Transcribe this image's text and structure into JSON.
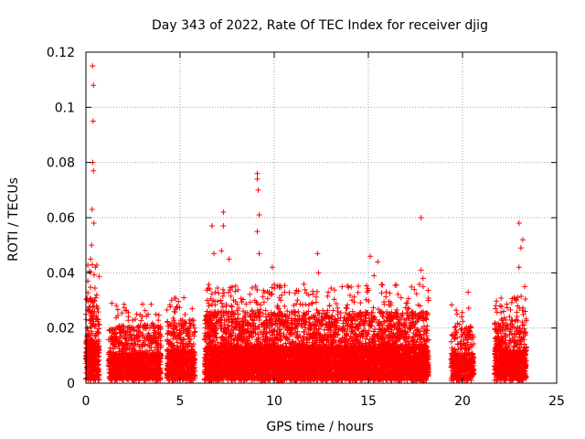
{
  "chart_data": {
    "type": "scatter",
    "title": "Day 343 of 2022, Rate Of TEC Index for receiver djig",
    "xlabel": "GPS time / hours",
    "ylabel": "ROTI / TECUs",
    "xlim": [
      0,
      25
    ],
    "ylim": [
      0,
      0.12
    ],
    "x_ticks": [
      0,
      5,
      10,
      15,
      20,
      25
    ],
    "x_tick_labels": [
      "0",
      "5",
      "10",
      "15",
      "20",
      "25"
    ],
    "y_ticks": [
      0,
      0.02,
      0.04,
      0.06,
      0.08,
      0.1,
      0.12
    ],
    "y_tick_labels": [
      "0",
      "0.02",
      "0.04",
      "0.06",
      "0.08",
      "0.1",
      "0.12"
    ],
    "grid": true,
    "marker": "+",
    "color": "#ff0000",
    "data_segments": [
      {
        "start": 0.0,
        "end": 0.7,
        "density": 55,
        "base_max": 0.03
      },
      {
        "start": 1.2,
        "end": 4.0,
        "density": 40,
        "base_max": 0.02
      },
      {
        "start": 4.3,
        "end": 5.8,
        "density": 40,
        "base_max": 0.022
      },
      {
        "start": 6.3,
        "end": 18.2,
        "density": 55,
        "base_max": 0.025
      },
      {
        "start": 19.4,
        "end": 20.6,
        "density": 35,
        "base_max": 0.02
      },
      {
        "start": 21.7,
        "end": 23.4,
        "density": 45,
        "base_max": 0.022
      }
    ],
    "highlight_points": [
      {
        "x": 0.35,
        "y": 0.115
      },
      {
        "x": 0.4,
        "y": 0.108
      },
      {
        "x": 0.38,
        "y": 0.095
      },
      {
        "x": 0.36,
        "y": 0.08
      },
      {
        "x": 0.4,
        "y": 0.077
      },
      {
        "x": 0.33,
        "y": 0.063
      },
      {
        "x": 0.42,
        "y": 0.058
      },
      {
        "x": 0.3,
        "y": 0.05
      },
      {
        "x": 0.25,
        "y": 0.045
      },
      {
        "x": 0.1,
        "y": 0.037
      },
      {
        "x": 0.5,
        "y": 0.042
      },
      {
        "x": 6.7,
        "y": 0.057
      },
      {
        "x": 7.3,
        "y": 0.062
      },
      {
        "x": 7.3,
        "y": 0.057
      },
      {
        "x": 7.2,
        "y": 0.048
      },
      {
        "x": 6.8,
        "y": 0.047
      },
      {
        "x": 7.6,
        "y": 0.045
      },
      {
        "x": 9.1,
        "y": 0.076
      },
      {
        "x": 9.1,
        "y": 0.074
      },
      {
        "x": 9.15,
        "y": 0.07
      },
      {
        "x": 9.2,
        "y": 0.061
      },
      {
        "x": 9.1,
        "y": 0.055
      },
      {
        "x": 9.2,
        "y": 0.047
      },
      {
        "x": 9.9,
        "y": 0.042
      },
      {
        "x": 12.3,
        "y": 0.047
      },
      {
        "x": 12.35,
        "y": 0.04
      },
      {
        "x": 15.1,
        "y": 0.046
      },
      {
        "x": 15.5,
        "y": 0.044
      },
      {
        "x": 15.3,
        "y": 0.039
      },
      {
        "x": 17.8,
        "y": 0.06
      },
      {
        "x": 17.8,
        "y": 0.041
      },
      {
        "x": 17.9,
        "y": 0.038
      },
      {
        "x": 23.0,
        "y": 0.058
      },
      {
        "x": 23.2,
        "y": 0.052
      },
      {
        "x": 23.1,
        "y": 0.049
      },
      {
        "x": 23.0,
        "y": 0.042
      },
      {
        "x": 23.3,
        "y": 0.035
      },
      {
        "x": 5.2,
        "y": 0.031
      },
      {
        "x": 20.3,
        "y": 0.033
      },
      {
        "x": 2.7,
        "y": 0.025
      },
      {
        "x": 3.3,
        "y": 0.025
      }
    ]
  }
}
